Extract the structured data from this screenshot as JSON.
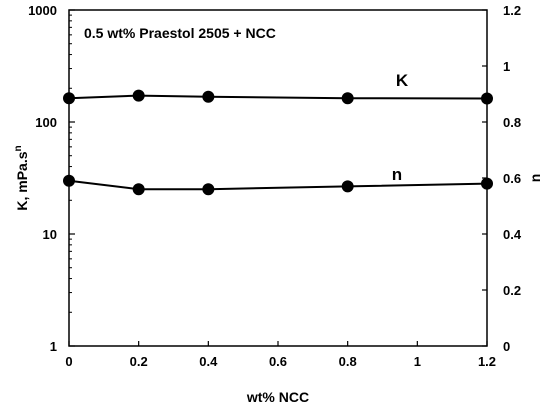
{
  "chart_data": {
    "type": "line",
    "annotation": "0.5 wt% Praestol 2505 + NCC",
    "xlabel": "wt% NCC",
    "ylabel_left": "K, mPa.s",
    "ylabel_left_superscript": "n",
    "ylabel_right": "n",
    "xlim": [
      0,
      1.2
    ],
    "x_ticks": [
      "0",
      "0.2",
      "0.4",
      "0.6",
      "0.8",
      "1",
      "1.2"
    ],
    "y_left_scale": "log",
    "y_left_lim": [
      1,
      1000
    ],
    "y_left_ticks": [
      "1",
      "10",
      "100",
      "1000"
    ],
    "y_right_lim": [
      0,
      1.2
    ],
    "y_right_ticks": [
      "0",
      "0.2",
      "0.4",
      "0.6",
      "0.8",
      "1",
      "1.2"
    ],
    "grid": false,
    "colors": {
      "line": "#000000",
      "marker": "#000000",
      "series_label": "#1f3a7a"
    },
    "series": [
      {
        "name": "K",
        "axis": "left",
        "x": [
          0,
          0.2,
          0.4,
          0.8,
          1.2
        ],
        "values": [
          163,
          172,
          168,
          163,
          162
        ]
      },
      {
        "name": "n",
        "axis": "right",
        "x": [
          0,
          0.2,
          0.4,
          0.8,
          1.2
        ],
        "values": [
          0.59,
          0.56,
          0.56,
          0.57,
          0.58
        ]
      }
    ]
  }
}
